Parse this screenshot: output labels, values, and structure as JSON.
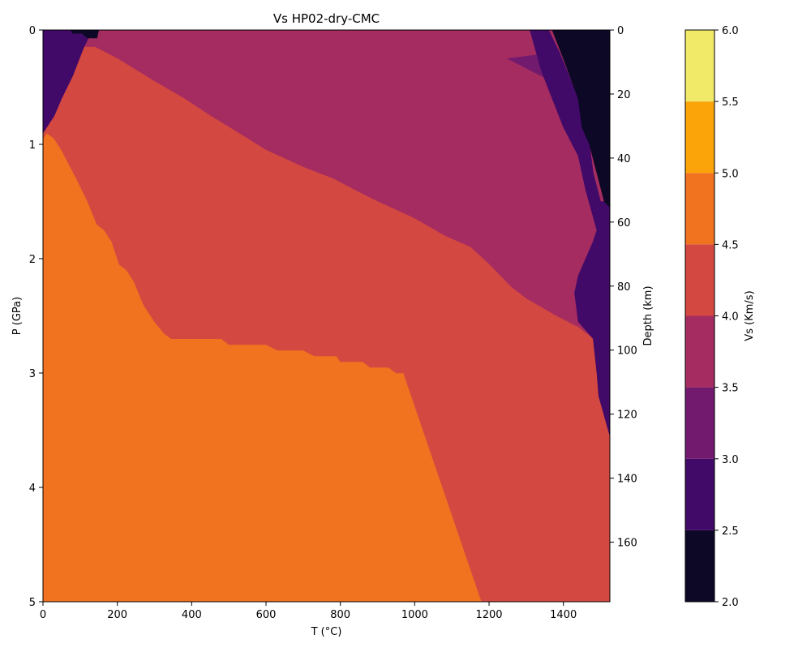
{
  "chart_data": {
    "type": "contourf",
    "title": "Vs HP02-dry-CMC",
    "xlabel": "T (°C)",
    "ylabel": "P (GPa)",
    "ylabel_right": "Depth (km)",
    "colorbar_label": "Vs (Km/s)",
    "xlim": [
      0,
      1525
    ],
    "ylim": [
      5,
      0
    ],
    "depth_lim": [
      178.6,
      0
    ],
    "x_ticks": [
      0,
      200,
      400,
      600,
      800,
      1000,
      1200,
      1400
    ],
    "y_ticks": [
      0,
      1,
      2,
      3,
      4,
      5
    ],
    "depth_ticks": [
      0,
      20,
      40,
      60,
      80,
      100,
      120,
      140,
      160
    ],
    "levels": [
      2.0,
      2.5,
      3.0,
      3.5,
      4.0,
      4.5,
      5.0,
      5.5,
      6.0
    ],
    "level_colors": [
      "#0c0826",
      "#420a68",
      "#721a6e",
      "#a52c60",
      "#d44842",
      "#f1721f",
      "#fba40a",
      "#f1ea69"
    ],
    "regions": [
      {
        "band": "4.5-5.0",
        "color": "#f1721f",
        "polygon": [
          [
            0,
            0.95
          ],
          [
            10,
            0.9
          ],
          [
            30,
            0.95
          ],
          [
            50,
            1.05
          ],
          [
            90,
            1.3
          ],
          [
            120,
            1.5
          ],
          [
            145,
            1.7
          ],
          [
            165,
            1.75
          ],
          [
            185,
            1.85
          ],
          [
            205,
            2.05
          ],
          [
            225,
            2.1
          ],
          [
            245,
            2.2
          ],
          [
            270,
            2.4
          ],
          [
            300,
            2.55
          ],
          [
            325,
            2.65
          ],
          [
            345,
            2.7
          ],
          [
            480,
            2.7
          ],
          [
            500,
            2.75
          ],
          [
            600,
            2.75
          ],
          [
            630,
            2.8
          ],
          [
            700,
            2.8
          ],
          [
            730,
            2.85
          ],
          [
            790,
            2.85
          ],
          [
            800,
            2.9
          ],
          [
            860,
            2.9
          ],
          [
            880,
            2.95
          ],
          [
            930,
            2.95
          ],
          [
            950,
            3.0
          ],
          [
            970,
            3.0
          ],
          [
            1180,
            5.0
          ],
          [
            0,
            5.0
          ]
        ]
      },
      {
        "band": "4.0-4.5",
        "color": "#d44842",
        "polygon": [
          [
            0,
            0.95
          ],
          [
            0,
            0.85
          ],
          [
            30,
            0.75
          ],
          [
            50,
            0.6
          ],
          [
            80,
            0.4
          ],
          [
            110,
            0.15
          ],
          [
            140,
            0.15
          ],
          [
            200,
            0.25
          ],
          [
            300,
            0.45
          ],
          [
            380,
            0.6
          ],
          [
            450,
            0.75
          ],
          [
            500,
            0.85
          ],
          [
            550,
            0.95
          ],
          [
            600,
            1.05
          ],
          [
            700,
            1.2
          ],
          [
            780,
            1.3
          ],
          [
            850,
            1.42
          ],
          [
            900,
            1.5
          ],
          [
            1000,
            1.65
          ],
          [
            1080,
            1.8
          ],
          [
            1150,
            1.9
          ],
          [
            1200,
            2.05
          ],
          [
            1260,
            2.25
          ],
          [
            1300,
            2.35
          ],
          [
            1380,
            2.5
          ],
          [
            1440,
            2.6
          ],
          [
            1480,
            2.7
          ],
          [
            1490,
            3.0
          ],
          [
            1495,
            3.2
          ],
          [
            1520,
            3.5
          ],
          [
            1525,
            3.5
          ],
          [
            1525,
            5.0
          ],
          [
            1180,
            5.0
          ],
          [
            970,
            3.0
          ],
          [
            950,
            3.0
          ],
          [
            930,
            2.95
          ],
          [
            880,
            2.95
          ],
          [
            860,
            2.9
          ],
          [
            800,
            2.9
          ],
          [
            790,
            2.85
          ],
          [
            730,
            2.85
          ],
          [
            700,
            2.8
          ],
          [
            630,
            2.8
          ],
          [
            600,
            2.75
          ],
          [
            500,
            2.75
          ],
          [
            480,
            2.7
          ],
          [
            345,
            2.7
          ],
          [
            325,
            2.65
          ],
          [
            300,
            2.55
          ],
          [
            270,
            2.4
          ],
          [
            245,
            2.2
          ],
          [
            225,
            2.1
          ],
          [
            205,
            2.05
          ],
          [
            185,
            1.85
          ],
          [
            165,
            1.75
          ],
          [
            145,
            1.7
          ],
          [
            120,
            1.5
          ],
          [
            90,
            1.3
          ],
          [
            50,
            1.05
          ],
          [
            30,
            0.95
          ],
          [
            10,
            0.9
          ]
        ]
      },
      {
        "band": "3.0-3.5",
        "color": "#721a6e",
        "polygon": [
          [
            1250,
            0.25
          ],
          [
            1370,
            0.2
          ],
          [
            1390,
            0.38
          ],
          [
            1400,
            0.5
          ]
        ]
      },
      {
        "band": "2.5-3.0",
        "color": "#420a68",
        "polygon": [
          [
            0,
            0.9
          ],
          [
            30,
            0.75
          ],
          [
            50,
            0.6
          ],
          [
            80,
            0.4
          ],
          [
            110,
            0.15
          ],
          [
            130,
            0.02
          ],
          [
            120,
            0
          ],
          [
            0,
            0
          ]
        ]
      },
      {
        "band": "2.5-3.0",
        "color": "#420a68",
        "polygon": [
          [
            1360,
            0
          ],
          [
            1390,
            0.2
          ],
          [
            1440,
            0.6
          ],
          [
            1450,
            0.85
          ],
          [
            1470,
            1.0
          ],
          [
            1480,
            1.25
          ],
          [
            1500,
            1.5
          ],
          [
            1525,
            1.5
          ],
          [
            1525,
            3.55
          ],
          [
            1495,
            3.2
          ],
          [
            1490,
            3.0
          ],
          [
            1480,
            2.7
          ],
          [
            1440,
            2.55
          ],
          [
            1430,
            2.3
          ],
          [
            1440,
            2.15
          ],
          [
            1480,
            1.85
          ],
          [
            1490,
            1.75
          ],
          [
            1460,
            1.4
          ],
          [
            1440,
            1.1
          ],
          [
            1400,
            0.85
          ],
          [
            1340,
            0.35
          ],
          [
            1310,
            0
          ]
        ]
      },
      {
        "band": "2.0-2.5",
        "color": "#0c0826",
        "polygon": [
          [
            1370,
            0
          ],
          [
            1525,
            0
          ],
          [
            1525,
            1.55
          ],
          [
            1510,
            1.5
          ],
          [
            1490,
            1.25
          ],
          [
            1470,
            1.0
          ],
          [
            1450,
            0.85
          ],
          [
            1440,
            0.6
          ],
          [
            1400,
            0.25
          ]
        ]
      },
      {
        "band": "2.0-2.5",
        "color": "#0c0826",
        "polygon": [
          [
            75,
            0
          ],
          [
            150,
            0
          ],
          [
            145,
            0.07
          ],
          [
            120,
            0.07
          ],
          [
            105,
            0.03
          ],
          [
            80,
            0.03
          ]
        ]
      }
    ]
  }
}
